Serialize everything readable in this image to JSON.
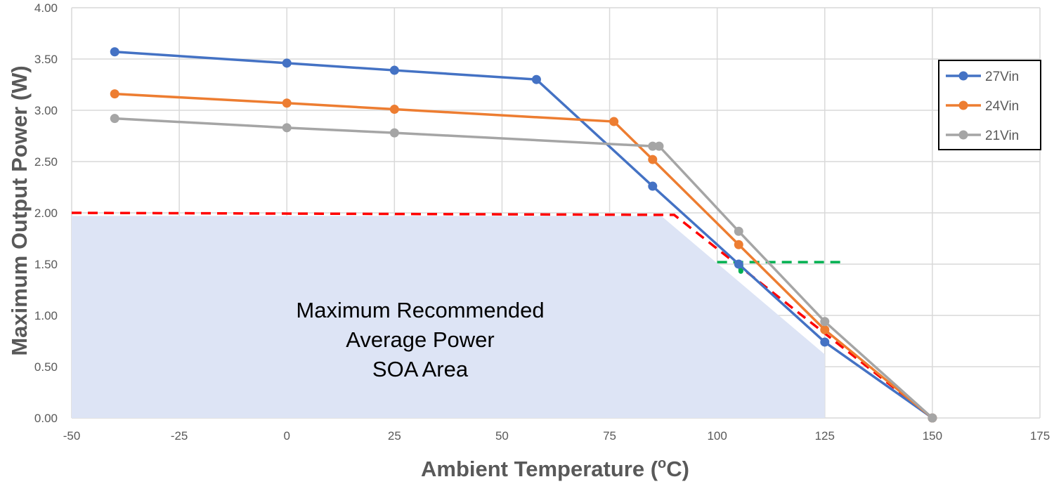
{
  "chart_data": {
    "type": "line",
    "title": "",
    "xlabel": "Ambient Temperature (°C)",
    "xlabel_parts": [
      "Ambient Temperature (",
      "o",
      "C)"
    ],
    "ylabel": "Maximum Output Power (W)",
    "xlim": [
      -50,
      175
    ],
    "ylim": [
      0,
      4
    ],
    "xticks": [
      -50,
      -25,
      0,
      25,
      50,
      75,
      100,
      125,
      150,
      175
    ],
    "yticks": [
      "0.00",
      "0.50",
      "1.00",
      "1.50",
      "2.00",
      "2.50",
      "3.00",
      "3.50",
      "4.00"
    ],
    "grid": true,
    "legend_position": "right",
    "series": [
      {
        "name": "27Vin",
        "color": "#4472C4",
        "x": [
          -40,
          0,
          25,
          58,
          85,
          105,
          125,
          150
        ],
        "y": [
          3.57,
          3.46,
          3.39,
          3.3,
          2.26,
          1.5,
          0.74,
          0.0
        ]
      },
      {
        "name": "24Vin",
        "color": "#ED7D31",
        "x": [
          -40,
          0,
          25,
          76,
          85,
          105,
          125,
          150
        ],
        "y": [
          3.16,
          3.07,
          3.01,
          2.89,
          2.52,
          1.69,
          0.86,
          0.0
        ]
      },
      {
        "name": "21Vin",
        "color": "#A5A5A5",
        "x": [
          -40,
          0,
          25,
          85,
          86.5,
          105,
          125,
          150
        ],
        "y": [
          2.92,
          2.83,
          2.78,
          2.65,
          2.65,
          1.82,
          0.94,
          0.0
        ]
      }
    ],
    "reference_lines": [
      {
        "name": "red-derating-dashed",
        "color": "#FF0000",
        "x": [
          -50,
          90,
          150
        ],
        "y": [
          2.0,
          1.98,
          0.0
        ]
      },
      {
        "name": "green-1.5W-dashed",
        "color": "#00B050",
        "x": [
          100,
          130
        ],
        "y": [
          1.52,
          1.52
        ]
      }
    ],
    "soa_area": {
      "color": "#DDE4F5",
      "x": [
        -50,
        87,
        125,
        125,
        -50
      ],
      "y": [
        1.97,
        1.97,
        0.62,
        0,
        0
      ]
    },
    "annotation": [
      "Maximum Recommended",
      "Average Power",
      "SOA Area"
    ]
  }
}
